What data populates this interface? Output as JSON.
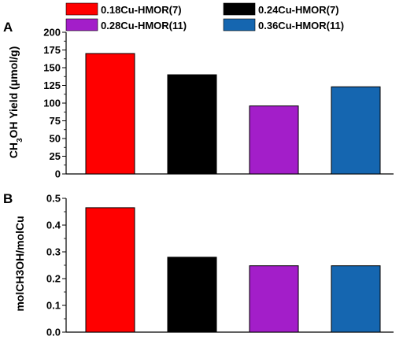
{
  "legend": [
    {
      "label": "0.18Cu-HMOR(7)",
      "color": "#ff0000"
    },
    {
      "label": "0.24Cu-HMOR(7)",
      "color": "#000000"
    },
    {
      "label": "0.28Cu-HMOR(11)",
      "color": "#a31ec9"
    },
    {
      "label": "0.36Cu-HMOR(11)",
      "color": "#1566b0"
    }
  ],
  "chart_data": [
    {
      "type": "bar",
      "panel_label": "A",
      "ylabel": "CH3OH Yield (μmol/g)",
      "ylim": [
        0,
        200
      ],
      "yticks": [
        0,
        25,
        50,
        75,
        100,
        125,
        150,
        175,
        200
      ],
      "categories": [
        "0.18Cu-HMOR(7)",
        "0.24Cu-HMOR(7)",
        "0.28Cu-HMOR(11)",
        "0.36Cu-HMOR(11)"
      ],
      "values": [
        170,
        140,
        96,
        123
      ],
      "colors": [
        "#ff0000",
        "#000000",
        "#a31ec9",
        "#1566b0"
      ]
    },
    {
      "type": "bar",
      "panel_label": "B",
      "ylabel": "molCH3OH/molCu",
      "ylim": [
        0,
        0.5
      ],
      "yticks": [
        "0.0",
        "0.1",
        "0.2",
        "0.3",
        "0.4",
        "0.5"
      ],
      "categories": [
        "0.18Cu-HMOR(7)",
        "0.24Cu-HMOR(7)",
        "0.28Cu-HMOR(11)",
        "0.36Cu-HMOR(11)"
      ],
      "values": [
        0.465,
        0.28,
        0.248,
        0.248
      ],
      "colors": [
        "#ff0000",
        "#000000",
        "#a31ec9",
        "#1566b0"
      ]
    }
  ]
}
